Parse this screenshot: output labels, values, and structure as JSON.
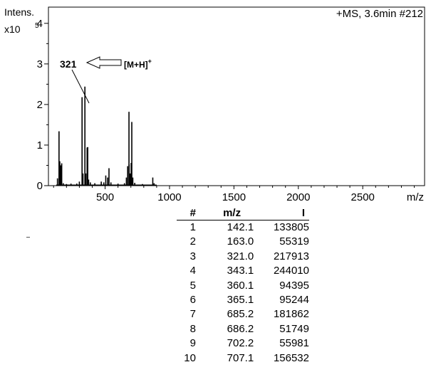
{
  "chart_data": {
    "type": "spectrum",
    "yaxis_title_line1": "Intens.",
    "yaxis_title_line2": "x10",
    "yaxis_exponent": "5",
    "header_label": "+MS, 3.6min #212",
    "xlabel": "m/z",
    "xlim": [
      60,
      2980
    ],
    "ylim": [
      0,
      4.4
    ],
    "x_ticks": [
      500,
      1000,
      1500,
      2000,
      2500
    ],
    "y_ticks": [
      0,
      1,
      2,
      3,
      4
    ],
    "annotation": {
      "peak_label": "321",
      "ion_label": "[M+H]",
      "ion_charge": "+",
      "peak_x": 321.0,
      "peak_y": 2.18
    },
    "peaks": [
      {
        "x": 130,
        "y": 0.18
      },
      {
        "x": 142.1,
        "y": 1.34
      },
      {
        "x": 148,
        "y": 0.6
      },
      {
        "x": 155,
        "y": 0.5
      },
      {
        "x": 163.0,
        "y": 0.55
      },
      {
        "x": 175,
        "y": 0.06
      },
      {
        "x": 200,
        "y": 0.04
      },
      {
        "x": 235,
        "y": 0.05
      },
      {
        "x": 280,
        "y": 0.05
      },
      {
        "x": 300,
        "y": 0.1
      },
      {
        "x": 321.0,
        "y": 2.18
      },
      {
        "x": 328,
        "y": 0.3
      },
      {
        "x": 343.1,
        "y": 2.44
      },
      {
        "x": 350,
        "y": 0.3
      },
      {
        "x": 360.1,
        "y": 0.94
      },
      {
        "x": 365.1,
        "y": 0.95
      },
      {
        "x": 372,
        "y": 0.15
      },
      {
        "x": 385,
        "y": 0.08
      },
      {
        "x": 420,
        "y": 0.06
      },
      {
        "x": 470,
        "y": 0.1
      },
      {
        "x": 490,
        "y": 0.08
      },
      {
        "x": 505,
        "y": 0.25
      },
      {
        "x": 520,
        "y": 0.2
      },
      {
        "x": 530,
        "y": 0.43
      },
      {
        "x": 545,
        "y": 0.08
      },
      {
        "x": 600,
        "y": 0.05
      },
      {
        "x": 650,
        "y": 0.06
      },
      {
        "x": 665,
        "y": 0.2
      },
      {
        "x": 675,
        "y": 0.48
      },
      {
        "x": 685.2,
        "y": 1.82
      },
      {
        "x": 686.2,
        "y": 0.52
      },
      {
        "x": 695,
        "y": 0.3
      },
      {
        "x": 702.2,
        "y": 0.56
      },
      {
        "x": 707.1,
        "y": 1.57
      },
      {
        "x": 715,
        "y": 0.2
      },
      {
        "x": 730,
        "y": 0.07
      },
      {
        "x": 790,
        "y": 0.04
      },
      {
        "x": 870,
        "y": 0.2
      },
      {
        "x": 880,
        "y": 0.06
      }
    ],
    "table": {
      "headers": [
        "#",
        "m/z",
        "I"
      ],
      "rows": [
        [
          "1",
          "142.1",
          "133805"
        ],
        [
          "2",
          "163.0",
          "55319"
        ],
        [
          "3",
          "321.0",
          "217913"
        ],
        [
          "4",
          "343.1",
          "244010"
        ],
        [
          "5",
          "360.1",
          "94395"
        ],
        [
          "6",
          "365.1",
          "95244"
        ],
        [
          "7",
          "685.2",
          "181862"
        ],
        [
          "8",
          "686.2",
          "51749"
        ],
        [
          "9",
          "702.2",
          "55981"
        ],
        [
          "10",
          "707.1",
          "156532"
        ]
      ]
    }
  }
}
